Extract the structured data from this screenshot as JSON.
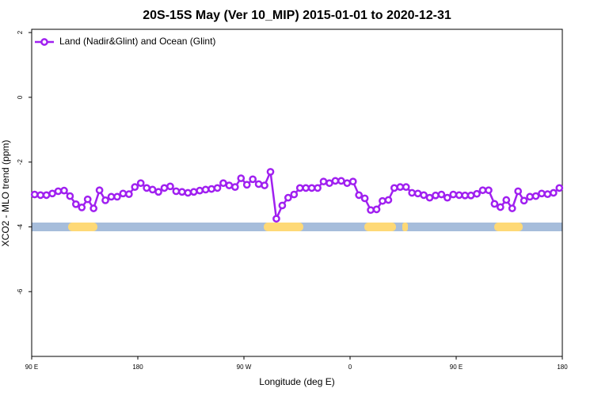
{
  "chart_data": {
    "type": "line",
    "title": "20S-15S May (Ver 10_MIP)   2015-01-01 to 2020-12-31",
    "xlabel": "Longitude (deg E)",
    "ylabel": "XCO2 - MLO trend (ppm)",
    "x": [
      92.5,
      97.5,
      102.5,
      107.5,
      112.5,
      117.5,
      122.5,
      127.5,
      132.5,
      137.5,
      142.5,
      147.5,
      152.5,
      157.5,
      162.5,
      167.5,
      172.5,
      177.5,
      182.5,
      187.5,
      192.5,
      197.5,
      202.5,
      207.5,
      212.5,
      217.5,
      222.5,
      227.5,
      232.5,
      237.5,
      242.5,
      247.5,
      252.5,
      257.5,
      262.5,
      267.5,
      272.5,
      277.5,
      282.5,
      287.5,
      292.5,
      297.5,
      302.5,
      307.5,
      312.5,
      317.5,
      322.5,
      327.5,
      332.5,
      337.5,
      342.5,
      347.5,
      352.5,
      357.5,
      362.5,
      367.5,
      372.5,
      377.5,
      382.5,
      387.5,
      392.5,
      397.5,
      402.5,
      407.5,
      412.5,
      417.5,
      422.5,
      427.5,
      432.5,
      437.5,
      442.5,
      447.5,
      452.5,
      457.5,
      462.5,
      467.5,
      472.5,
      477.5,
      482.5,
      487.5,
      492.5,
      497.5,
      502.5,
      507.5,
      512.5,
      517.5,
      522.5,
      527.5,
      532.5,
      537.5
    ],
    "series": [
      {
        "name": "Land (Nadir&Glint) and Ocean (Glint)",
        "color": "#a020f0",
        "values": [
          -3.0,
          -3.02,
          -3.02,
          -2.97,
          -2.9,
          -2.88,
          -3.05,
          -3.3,
          -3.4,
          -3.15,
          -3.43,
          -2.87,
          -3.18,
          -3.07,
          -3.07,
          -2.97,
          -2.99,
          -2.77,
          -2.65,
          -2.8,
          -2.85,
          -2.92,
          -2.8,
          -2.75,
          -2.9,
          -2.92,
          -2.95,
          -2.92,
          -2.88,
          -2.85,
          -2.83,
          -2.8,
          -2.65,
          -2.72,
          -2.77,
          -2.5,
          -2.7,
          -2.53,
          -2.68,
          -2.72,
          -2.3,
          -3.75,
          -3.34,
          -3.1,
          -3.0,
          -2.8,
          -2.8,
          -2.8,
          -2.8,
          -2.6,
          -2.65,
          -2.58,
          -2.58,
          -2.65,
          -2.6,
          -3.02,
          -3.12,
          -3.48,
          -3.46,
          -3.2,
          -3.17,
          -2.8,
          -2.77,
          -2.77,
          -2.95,
          -2.97,
          -3.02,
          -3.1,
          -3.03,
          -3.0,
          -3.1,
          -3.0,
          -3.02,
          -3.03,
          -3.03,
          -2.98,
          -2.87,
          -2.87,
          -3.29,
          -3.39,
          -3.17,
          -3.43,
          -2.9,
          -3.19,
          -3.07,
          -3.05,
          -2.97,
          -2.99,
          -2.95,
          -2.8
        ]
      }
    ],
    "xlim": [
      90,
      540
    ],
    "xticks": [
      {
        "value": 90,
        "label": "90 E"
      },
      180,
      {
        "value": 270,
        "label": "90 W"
      },
      {
        "value": 360,
        "label": "0"
      },
      {
        "value": 450,
        "label": "90 E"
      },
      {
        "value": 540,
        "label": "180"
      }
    ],
    "ylim": [
      -8,
      2.1
    ],
    "yticks": [
      -6,
      -4,
      -2,
      0,
      2
    ],
    "legend": "top-left"
  }
}
